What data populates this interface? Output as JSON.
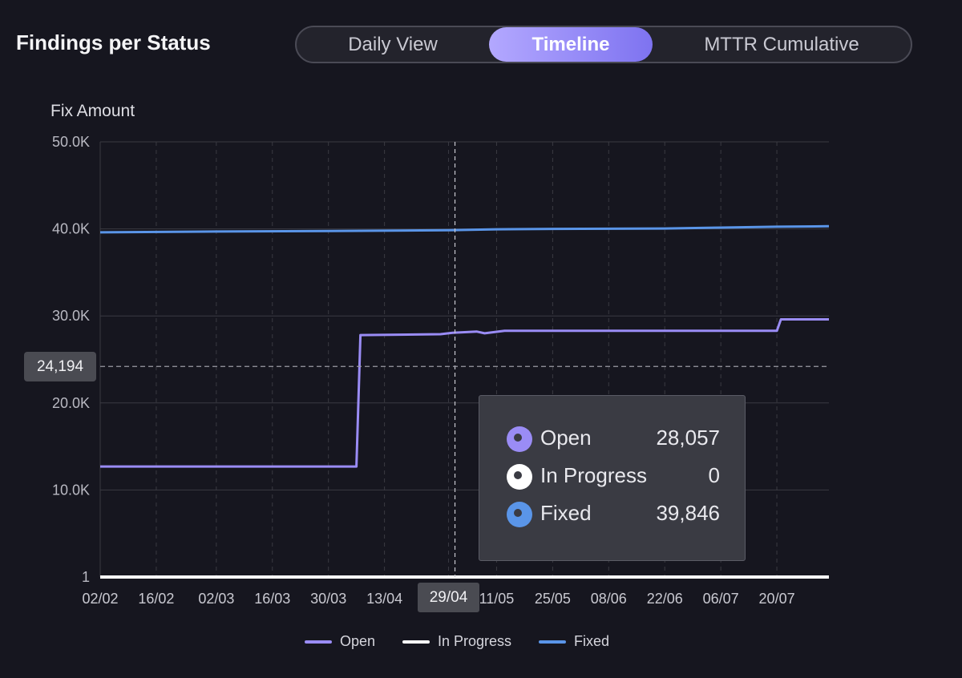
{
  "header": {
    "title": "Findings per Status",
    "views": [
      {
        "label": "Daily View",
        "active": false
      },
      {
        "label": "Timeline",
        "active": true
      },
      {
        "label": "MTTR Cumulative",
        "active": false
      }
    ]
  },
  "colors": {
    "open": "#9a8cf5",
    "in_progress": "#ffffff",
    "fixed": "#5a95e8",
    "background": "#16161f",
    "accent": "#8b80f6"
  },
  "crosshair": {
    "y_label": "24,194",
    "y_value": 24194,
    "x_label": "29/04"
  },
  "tooltip": {
    "rows": [
      {
        "label": "Open",
        "value": "28,057"
      },
      {
        "label": "In Progress",
        "value": "0"
      },
      {
        "label": "Fixed",
        "value": "39,846"
      }
    ]
  },
  "chart_data": {
    "type": "line",
    "ylabel": "Fix Amount",
    "ylim": [
      1,
      50000
    ],
    "y_ticks": [
      {
        "value": 1,
        "label": "1"
      },
      {
        "value": 10000,
        "label": "10.0K"
      },
      {
        "value": 20000,
        "label": "20.0K"
      },
      {
        "value": 30000,
        "label": "30.0K"
      },
      {
        "value": 40000,
        "label": "40.0K"
      },
      {
        "value": 50000,
        "label": "50.0K"
      }
    ],
    "x_ticks": [
      "02/02",
      "16/02",
      "02/03",
      "16/03",
      "30/03",
      "13/04",
      "29/04",
      "11/05",
      "25/05",
      "08/06",
      "22/06",
      "06/07",
      "20/07"
    ],
    "x_range": [
      "02/02",
      "02/08"
    ],
    "grid": true,
    "legend": "bottom",
    "series": [
      {
        "name": "Open",
        "points": [
          [
            "02/02",
            12700
          ],
          [
            "06/04",
            12700
          ],
          [
            "07/04",
            27800
          ],
          [
            "27/04",
            27900
          ],
          [
            "30/04",
            28057
          ],
          [
            "06/05",
            28200
          ],
          [
            "08/05",
            28000
          ],
          [
            "13/05",
            28300
          ],
          [
            "20/07",
            28300
          ],
          [
            "21/07",
            29600
          ],
          [
            "02/08",
            29600
          ]
        ]
      },
      {
        "name": "In Progress",
        "points": [
          [
            "02/02",
            0
          ],
          [
            "02/08",
            0
          ]
        ]
      },
      {
        "name": "Fixed",
        "points": [
          [
            "02/02",
            39600
          ],
          [
            "02/03",
            39700
          ],
          [
            "30/03",
            39750
          ],
          [
            "29/04",
            39846
          ],
          [
            "11/05",
            39950
          ],
          [
            "25/05",
            40000
          ],
          [
            "22/06",
            40050
          ],
          [
            "06/07",
            40150
          ],
          [
            "20/07",
            40250
          ],
          [
            "02/08",
            40300
          ]
        ]
      }
    ]
  }
}
